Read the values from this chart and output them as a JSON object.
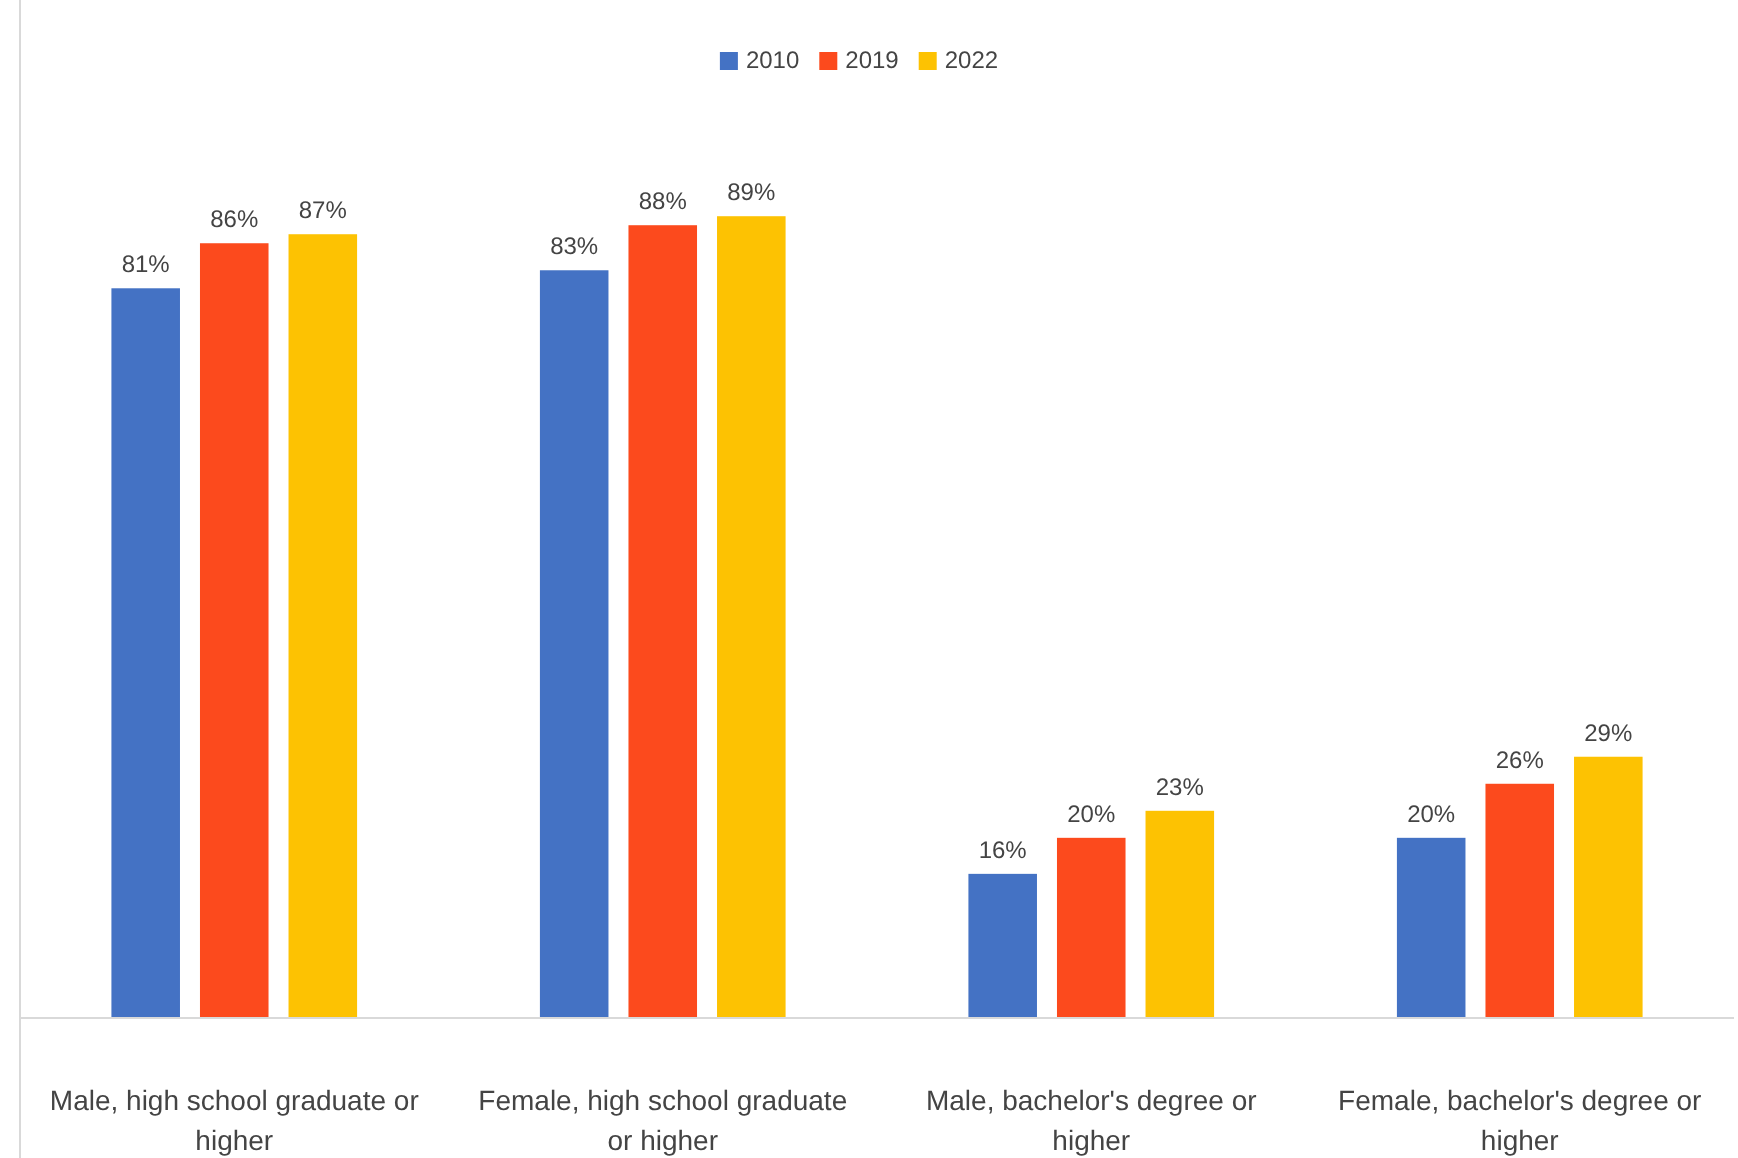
{
  "chart_data": {
    "type": "bar",
    "categories": [
      "Male, high school graduate or higher",
      "Female, high school graduate or higher",
      "Male, bachelor's degree or higher",
      "Female, bachelor's degree or higher"
    ],
    "series": [
      {
        "name": "2010",
        "color": "#4472c4",
        "values": [
          81,
          83,
          16,
          20
        ],
        "value_labels": [
          "81%",
          "83%",
          "16%",
          "20%"
        ]
      },
      {
        "name": "2019",
        "color": "#fc4a1d",
        "values": [
          86,
          88,
          20,
          26
        ],
        "value_labels": [
          "86%",
          "88%",
          "20%",
          "26%"
        ]
      },
      {
        "name": "2022",
        "color": "#fdc202",
        "values": [
          87,
          89,
          23,
          29
        ],
        "value_labels": [
          "87%",
          "89%",
          "23%",
          "29%"
        ]
      }
    ],
    "tick_labels": "x",
    "legend": "top"
  }
}
